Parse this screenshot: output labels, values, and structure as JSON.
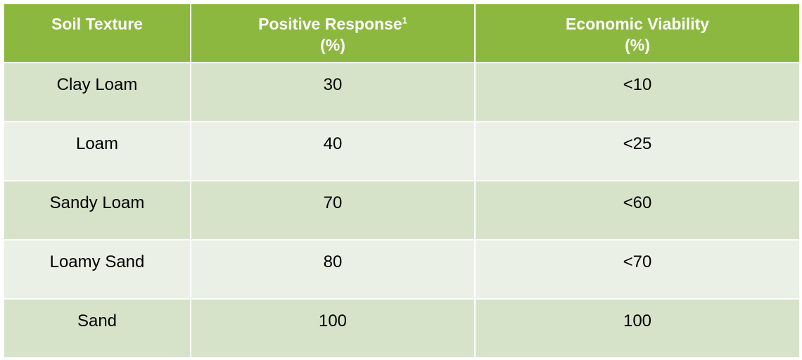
{
  "table": {
    "headers": [
      {
        "lines": [
          "Soil Texture"
        ],
        "sup": ""
      },
      {
        "lines": [
          "Positive Response",
          "(%)"
        ],
        "sup": "1"
      },
      {
        "lines": [
          "Economic Viability",
          "(%)"
        ],
        "sup": ""
      }
    ],
    "rows": [
      {
        "soil_texture": "Clay Loam",
        "positive_response": "30",
        "economic_viability": "<10"
      },
      {
        "soil_texture": "Loam",
        "positive_response": "40",
        "economic_viability": "<25"
      },
      {
        "soil_texture": "Sandy Loam",
        "positive_response": "70",
        "economic_viability": "<60"
      },
      {
        "soil_texture": "Loamy Sand",
        "positive_response": "80",
        "economic_viability": "<70"
      },
      {
        "soil_texture": "Sand",
        "positive_response": "100",
        "economic_viability": "100"
      }
    ]
  },
  "colors": {
    "header_bg": "#8db83f",
    "row_dark": "#d7e3c9",
    "row_light": "#ebf0e6",
    "header_text": "#ffffff"
  }
}
